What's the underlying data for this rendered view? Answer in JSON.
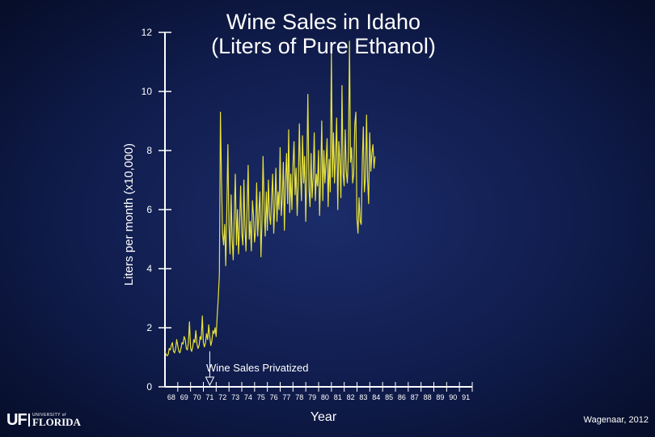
{
  "chart_data": {
    "type": "line",
    "title": "Wine Sales in Idaho",
    "subtitle": "(Liters of Pure Ethanol)",
    "ylabel": "Liters per month (x10,000)",
    "xlabel": "Year",
    "ylim": [
      0,
      12
    ],
    "xlim": [
      1968,
      1992
    ],
    "yticks": [
      0,
      2,
      4,
      6,
      8,
      10,
      12
    ],
    "xtick_labels": [
      "68",
      "69",
      "70",
      "71",
      "72",
      "73",
      "74",
      "75",
      "76",
      "77",
      "78",
      "79",
      "80",
      "81",
      "82",
      "83",
      "84",
      "85",
      "86",
      "87",
      "88",
      "89",
      "90",
      "91"
    ],
    "grid": false,
    "legend": "none",
    "annotation": {
      "text": "Wine Sales Privatized",
      "x": 1971.5
    },
    "series": [
      {
        "color": "#e8e23a",
        "x_start": 1968.0,
        "x_step": 0.0833,
        "values": [
          1.2,
          1.1,
          1.05,
          1.1,
          1.3,
          1.25,
          1.4,
          1.5,
          1.2,
          1.15,
          1.3,
          1.6,
          1.4,
          1.2,
          1.15,
          1.3,
          1.5,
          1.45,
          1.7,
          1.6,
          1.3,
          1.25,
          1.5,
          2.2,
          1.3,
          1.2,
          1.35,
          1.6,
          1.5,
          1.9,
          1.45,
          1.3,
          1.4,
          1.7,
          1.6,
          2.4,
          1.5,
          1.35,
          1.5,
          1.8,
          1.6,
          2.1,
          1.7,
          1.4,
          1.55,
          1.9,
          1.8,
          2.0,
          1.7,
          2.4,
          3.0,
          3.8,
          9.3,
          7.0,
          5.2,
          4.8,
          5.5,
          4.1,
          6.0,
          8.2,
          5.5,
          4.5,
          6.5,
          5.0,
          4.3,
          5.8,
          7.2,
          4.8,
          6.0,
          4.5,
          5.5,
          6.8,
          5.2,
          4.8,
          7.0,
          5.4,
          4.6,
          6.1,
          7.5,
          5.0,
          5.6,
          4.6,
          6.3,
          5.8,
          4.9,
          5.3,
          6.9,
          5.1,
          5.9,
          6.6,
          4.4,
          5.6,
          7.8,
          6.0,
          5.1,
          6.6,
          5.3,
          7.0,
          5.8,
          5.5,
          6.4,
          7.2,
          5.2,
          6.1,
          7.4,
          5.6,
          6.6,
          6.0,
          8.1,
          5.8,
          6.4,
          7.6,
          5.3,
          6.9,
          7.9,
          6.2,
          8.7,
          5.9,
          7.2,
          6.0,
          7.5,
          8.3,
          6.5,
          7.4,
          5.8,
          6.9,
          8.9,
          7.3,
          6.3,
          8.5,
          6.9,
          7.8,
          5.6,
          7.3,
          9.9,
          6.7,
          6.1,
          7.9,
          6.4,
          7.1,
          8.6,
          6.3,
          7.2,
          6.8,
          8.0,
          5.8,
          7.1,
          9.0,
          6.3,
          8.0,
          6.9,
          7.6,
          8.4,
          6.1,
          7.7,
          6.6,
          11.3,
          7.1,
          8.6,
          6.9,
          7.8,
          9.1,
          6.0,
          8.3,
          7.7,
          6.4,
          10.2,
          7.2,
          6.8,
          8.7,
          7.3,
          6.9,
          7.9,
          11.7,
          7.6,
          8.1,
          6.9,
          7.2,
          8.9,
          9.3,
          5.7,
          5.2,
          6.4,
          5.6,
          5.5,
          7.6,
          8.8,
          6.6,
          7.1,
          9.2,
          7.0,
          6.2,
          8.6,
          7.3,
          7.9,
          8.2,
          7.4,
          7.8
        ]
      }
    ]
  },
  "footer": {
    "credit": "Wagenaar, 2012",
    "logo": {
      "uf": "UF",
      "university": "UNIVERSITY of",
      "state": "FLORIDA"
    }
  }
}
